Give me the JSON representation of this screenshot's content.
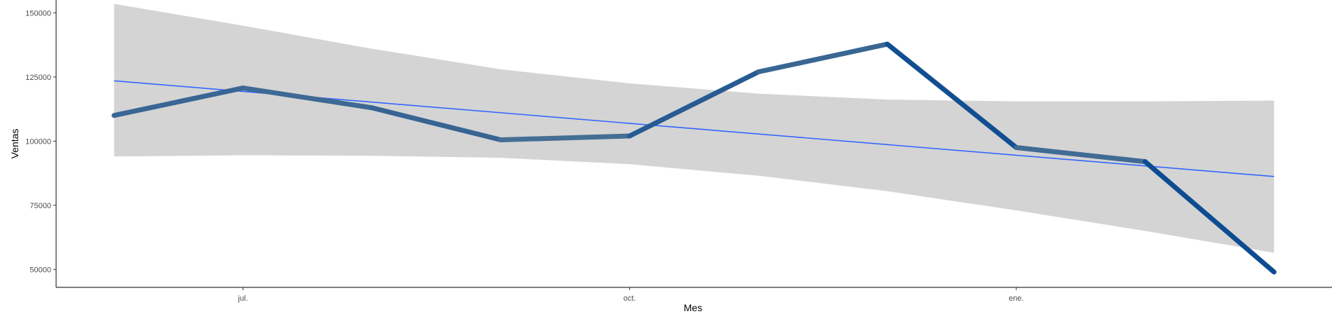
{
  "chart_data": {
    "type": "line",
    "title": "",
    "xlabel": "Mes",
    "ylabel": "Ventas",
    "x_ticks": [
      {
        "label": "jul.",
        "x": 1
      },
      {
        "label": "oct.",
        "x": 4
      },
      {
        "label": "ene.",
        "x": 7
      }
    ],
    "y_ticks": [
      50000,
      75000,
      100000,
      125000,
      150000
    ],
    "xlim": [
      -0.45,
      9.45
    ],
    "ylim": [
      43000,
      155000
    ],
    "grid": false,
    "legend": "none",
    "series": [
      {
        "x": [
          0,
          1,
          2,
          3,
          4,
          5,
          6,
          7,
          8,
          9
        ],
        "values": [
          110000,
          120700,
          113000,
          100500,
          102000,
          127000,
          137800,
          97500,
          92000,
          49000
        ],
        "line_color_scale": [
          "#476F94",
          "#0E4C92"
        ]
      }
    ],
    "trend": {
      "method": "linear",
      "color": "#3366FF",
      "x": [
        0,
        9
      ],
      "values": [
        123500,
        86200
      ]
    },
    "confidence_band": {
      "color": "#D4D4D4",
      "x": [
        0,
        1,
        2,
        3,
        4,
        5,
        6,
        7,
        8,
        9
      ],
      "upper": [
        153500,
        145000,
        136000,
        128000,
        122500,
        118500,
        116200,
        115500,
        115500,
        115800
      ],
      "lower": [
        94000,
        94500,
        94300,
        93500,
        91000,
        86500,
        80500,
        73000,
        65000,
        56500
      ]
    }
  }
}
